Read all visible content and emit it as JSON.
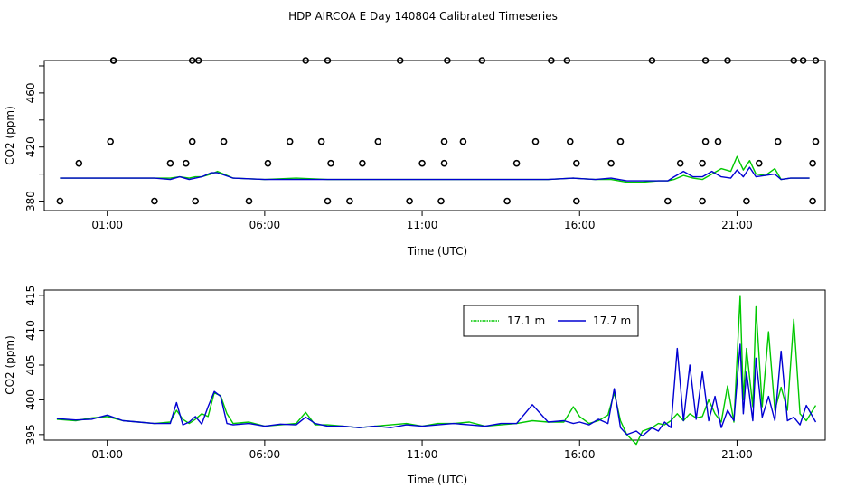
{
  "title": "HDP AIRCOA E  Day 140804  Calibrated Timeseries",
  "colors": {
    "series1": "#00c800",
    "series2": "#0000d2",
    "axis": "#000000",
    "markers": "#000000"
  },
  "chart_data": [
    {
      "type": "line",
      "panel": "top",
      "xlabel": "Time (UTC)",
      "ylabel": "CO2 (ppm)",
      "x_unit": "hours UTC",
      "xlim": [
        -1.0,
        23.8
      ],
      "ylim": [
        373,
        484
      ],
      "xticks": [
        1,
        6,
        11,
        16,
        21
      ],
      "xtick_labels": [
        "01:00",
        "06:00",
        "11:00",
        "16:00",
        "21:00"
      ],
      "yticks": [
        380,
        420,
        460
      ],
      "ytick_labels": [
        "380",
        "420",
        "460"
      ],
      "extra_tick_marks": [
        400,
        440,
        480
      ],
      "series": [
        {
          "color": "#00c800",
          "x": [
            -0.5,
            0.5,
            1.5,
            2.5,
            3.0,
            3.3,
            3.6,
            3.8,
            4.0,
            4.3,
            4.5,
            5.0,
            6.0,
            7.0,
            8.0,
            9.0,
            10.0,
            11.0,
            12.0,
            13.0,
            14.0,
            15.0,
            15.8,
            16.5,
            17.0,
            17.5,
            18.0,
            18.5,
            18.8,
            19.0,
            19.3,
            19.6,
            19.9,
            20.2,
            20.5,
            20.8,
            21.0,
            21.2,
            21.4,
            21.6,
            21.9,
            22.2,
            22.4,
            22.7,
            23.0,
            23.3
          ],
          "values": [
            397,
            397,
            397,
            397,
            397,
            398,
            397,
            398,
            398,
            400,
            402,
            397,
            396,
            397,
            396,
            396,
            396,
            396,
            396,
            396,
            396,
            396,
            397,
            396,
            396,
            394,
            394,
            395,
            395,
            396,
            399,
            397,
            396,
            400,
            404,
            402,
            413,
            403,
            410,
            400,
            399,
            404,
            396,
            397,
            397,
            397
          ]
        },
        {
          "color": "#0000d2",
          "x": [
            -0.5,
            0.5,
            1.5,
            2.5,
            3.0,
            3.3,
            3.6,
            3.8,
            4.0,
            4.3,
            4.5,
            5.0,
            6.0,
            7.0,
            8.0,
            9.0,
            10.0,
            11.0,
            12.0,
            13.0,
            14.0,
            15.0,
            15.8,
            16.5,
            17.0,
            17.5,
            18.0,
            18.5,
            18.8,
            19.0,
            19.3,
            19.6,
            19.9,
            20.2,
            20.5,
            20.8,
            21.0,
            21.2,
            21.4,
            21.6,
            21.9,
            22.2,
            22.4,
            22.7,
            23.0,
            23.3
          ],
          "values": [
            397,
            397,
            397,
            397,
            396,
            398,
            396,
            397,
            398,
            401,
            401,
            397,
            396,
            396,
            396,
            396,
            396,
            396,
            396,
            396,
            396,
            396,
            397,
            396,
            397,
            395,
            395,
            395,
            395,
            398,
            402,
            398,
            398,
            402,
            398,
            397,
            403,
            398,
            405,
            398,
            399,
            400,
            396,
            397,
            397,
            397
          ]
        }
      ],
      "markers": {
        "shape": "open-circle",
        "x": [
          -0.5,
          1.2,
          1.1,
          0.1,
          1.2,
          3.5,
          3.0,
          3.8,
          3.7,
          3.7,
          2.5,
          4.7,
          3.9,
          5.5,
          6.1,
          6.8,
          7.3,
          8.0,
          7.8,
          8.1,
          8.0,
          8.7,
          9.1,
          9.6,
          10.3,
          10.6,
          11.0,
          11.6,
          11.7,
          11.7,
          11.8,
          12.3,
          12.9,
          13.7,
          14.0,
          14.6,
          15.1,
          15.6,
          15.9,
          15.9,
          15.7,
          17.3,
          17.0,
          18.3,
          18.8,
          19.2,
          19.9,
          19.9,
          20.0,
          20.0,
          20.4,
          20.7,
          21.3,
          21.7,
          22.3,
          22.8,
          23.1,
          23.4,
          23.4,
          23.5,
          23.5
        ],
        "values": [
          380,
          484,
          424,
          408,
          484,
          408,
          408,
          380,
          424,
          484,
          380,
          424,
          484,
          380,
          408,
          424,
          484,
          484,
          424,
          408,
          380,
          380,
          408,
          424,
          484,
          380,
          408,
          380,
          408,
          424,
          484,
          424,
          484,
          380,
          408,
          424,
          484,
          484,
          408,
          380,
          424,
          424,
          408,
          484,
          380,
          408,
          380,
          408,
          424,
          484,
          424,
          484,
          380,
          408,
          424,
          484,
          484,
          380,
          408,
          424,
          484
        ]
      }
    },
    {
      "type": "line",
      "panel": "bottom",
      "xlabel": "Time (UTC)",
      "ylabel": "CO2 (ppm)",
      "x_unit": "hours UTC",
      "xlim": [
        -1.0,
        23.8
      ],
      "ylim": [
        394.2,
        415.8
      ],
      "xticks": [
        1,
        6,
        11,
        16,
        21
      ],
      "xtick_labels": [
        "01:00",
        "06:00",
        "11:00",
        "16:00",
        "21:00"
      ],
      "yticks": [
        395,
        400,
        405,
        410,
        415
      ],
      "ytick_labels": [
        "395",
        "400",
        "405",
        "410",
        "415"
      ],
      "legend": {
        "position": "top-right",
        "entries": [
          "17.1 m",
          "17.7 m"
        ]
      },
      "series": [
        {
          "name": "17.1 m",
          "color": "#00c800",
          "x": [
            -0.6,
            0.0,
            0.5,
            1.0,
            1.5,
            2.0,
            2.5,
            3.0,
            3.2,
            3.4,
            3.6,
            3.8,
            4.0,
            4.2,
            4.4,
            4.6,
            4.8,
            5.0,
            5.5,
            6.0,
            6.5,
            7.0,
            7.3,
            7.6,
            8.0,
            8.5,
            9.0,
            9.5,
            10.0,
            10.5,
            11.0,
            11.5,
            12.0,
            12.5,
            13.0,
            13.5,
            14.0,
            14.5,
            15.0,
            15.5,
            15.8,
            16.0,
            16.3,
            16.6,
            16.9,
            17.1,
            17.3,
            17.5,
            17.8,
            18.0,
            18.3,
            18.5,
            18.7,
            18.9,
            19.1,
            19.3,
            19.5,
            19.7,
            19.9,
            20.1,
            20.3,
            20.5,
            20.7,
            20.9,
            21.1,
            21.2,
            21.3,
            21.5,
            21.6,
            21.8,
            22.0,
            22.2,
            22.4,
            22.6,
            22.8,
            23.0,
            23.2,
            23.5
          ],
          "values": [
            397.2,
            397.0,
            397.4,
            397.6,
            397.0,
            396.8,
            396.6,
            396.8,
            398.5,
            397.2,
            396.6,
            397.2,
            398.0,
            397.6,
            401.0,
            400.6,
            398.0,
            396.6,
            396.8,
            396.2,
            396.4,
            396.6,
            398.2,
            396.4,
            396.4,
            396.2,
            396.0,
            396.2,
            396.4,
            396.6,
            396.2,
            396.6,
            396.6,
            396.8,
            396.2,
            396.4,
            396.6,
            397.0,
            396.8,
            396.8,
            399.0,
            397.6,
            396.6,
            397.0,
            397.8,
            401.0,
            397.0,
            395.0,
            393.6,
            395.5,
            396.0,
            396.6,
            396.4,
            397.0,
            398.0,
            397.0,
            398.0,
            397.4,
            397.6,
            400.0,
            398.0,
            396.8,
            402.0,
            396.8,
            415.0,
            400.0,
            407.4,
            399.0,
            413.4,
            399.0,
            409.8,
            398.5,
            401.8,
            398.5,
            411.6,
            398.0,
            397.0,
            399.2
          ]
        },
        {
          "name": "17.7 m",
          "color": "#0000d2",
          "x": [
            -0.6,
            0.0,
            0.5,
            1.0,
            1.5,
            2.0,
            2.5,
            3.0,
            3.2,
            3.4,
            3.6,
            3.8,
            4.0,
            4.2,
            4.4,
            4.6,
            4.8,
            5.0,
            5.5,
            6.0,
            6.5,
            7.0,
            7.3,
            7.6,
            8.0,
            8.5,
            9.0,
            9.5,
            10.0,
            10.5,
            11.0,
            11.5,
            12.0,
            12.5,
            13.0,
            13.5,
            14.0,
            14.5,
            15.0,
            15.5,
            15.8,
            16.0,
            16.3,
            16.6,
            16.9,
            17.1,
            17.3,
            17.5,
            17.8,
            18.0,
            18.3,
            18.5,
            18.7,
            18.9,
            19.1,
            19.3,
            19.5,
            19.7,
            19.9,
            20.1,
            20.3,
            20.5,
            20.7,
            20.9,
            21.1,
            21.2,
            21.3,
            21.5,
            21.6,
            21.8,
            22.0,
            22.2,
            22.4,
            22.6,
            22.8,
            23.0,
            23.2,
            23.5
          ],
          "values": [
            397.3,
            397.1,
            397.2,
            397.8,
            397.0,
            396.8,
            396.6,
            396.6,
            399.6,
            396.4,
            396.8,
            397.6,
            396.5,
            399.0,
            401.2,
            400.5,
            396.6,
            396.4,
            396.6,
            396.2,
            396.5,
            396.4,
            397.5,
            396.6,
            396.2,
            396.2,
            396.0,
            396.2,
            396.0,
            396.4,
            396.2,
            396.4,
            396.6,
            396.4,
            396.2,
            396.6,
            396.6,
            399.3,
            396.8,
            397.0,
            396.6,
            396.8,
            396.4,
            397.2,
            396.6,
            401.6,
            396.0,
            395.0,
            395.5,
            394.8,
            396.0,
            395.5,
            396.8,
            396.0,
            407.4,
            397.0,
            405.0,
            397.2,
            404.0,
            397.0,
            400.5,
            396.0,
            398.5,
            397.0,
            408.0,
            398.0,
            404.0,
            397.0,
            406.0,
            397.5,
            400.5,
            397.0,
            407.0,
            397.0,
            397.5,
            396.4,
            399.2,
            396.8
          ]
        }
      ]
    }
  ]
}
